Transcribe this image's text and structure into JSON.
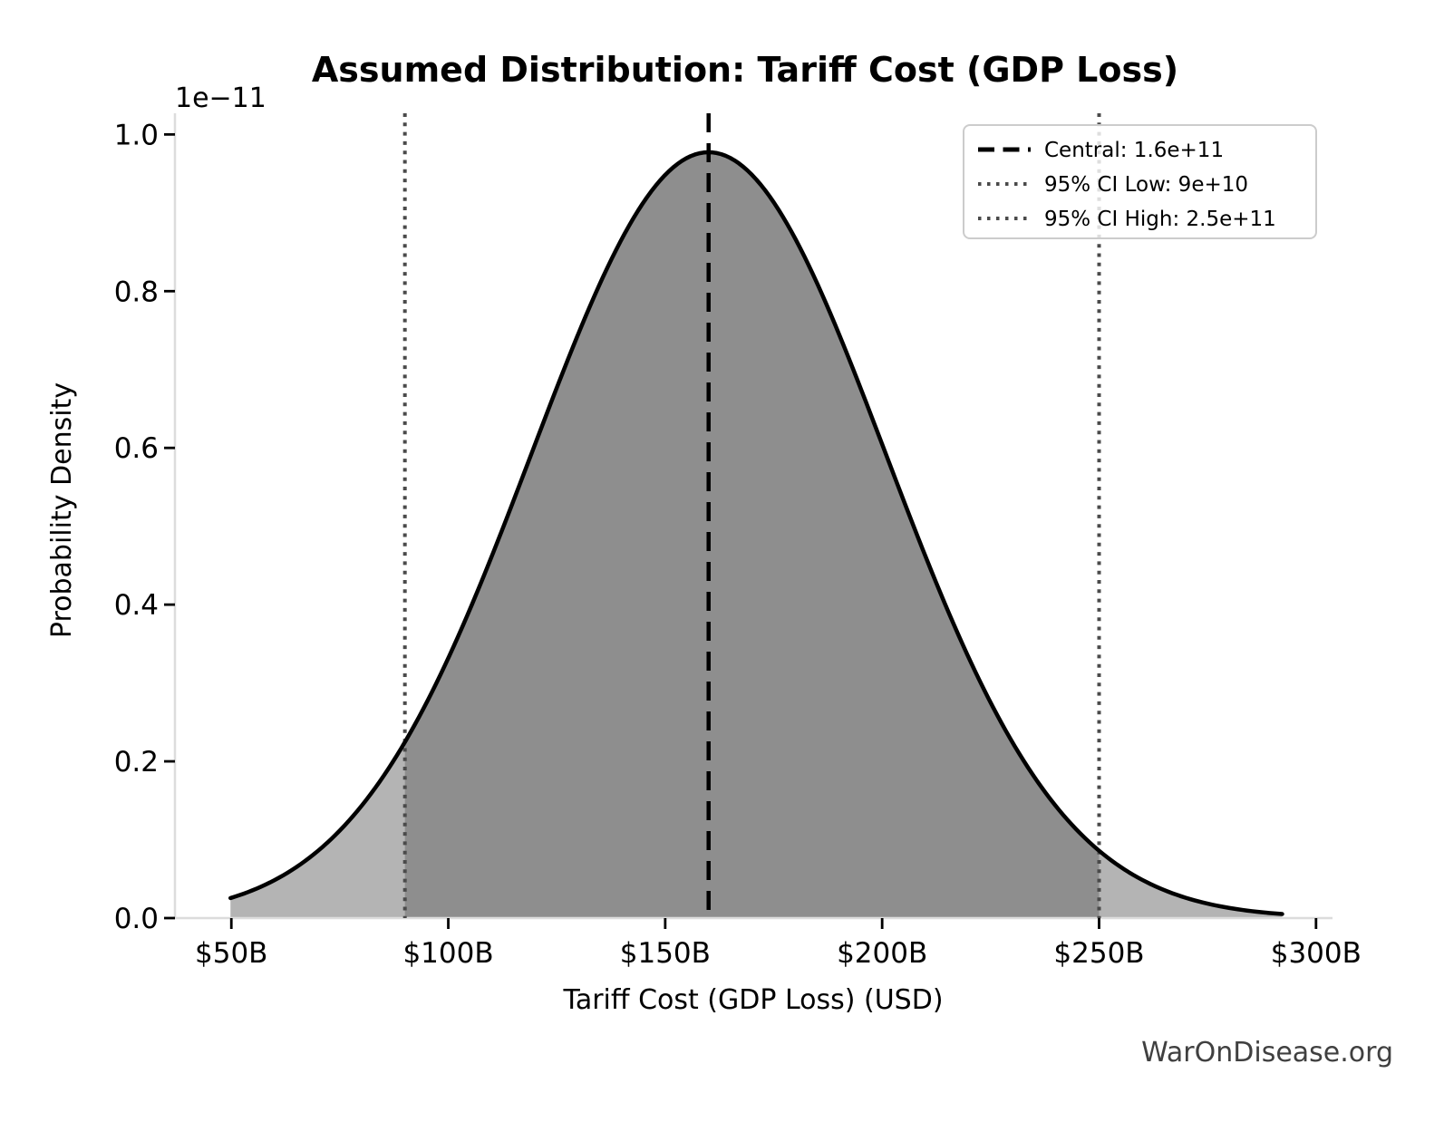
{
  "page": {
    "watermark": "WarOnDisease.org"
  },
  "chart_data": {
    "type": "area",
    "title": "Assumed Distribution: Tariff Cost (GDP Loss)",
    "xlabel": "Tariff Cost (GDP Loss) (USD)",
    "ylabel": "Probability Density",
    "y_scale_offset_label": "1e−11",
    "grid": false,
    "x_ticks": {
      "labels": [
        "$50B",
        "$100B",
        "$150B",
        "$200B",
        "$250B",
        "$300B"
      ],
      "values_billion_usd": [
        50,
        100,
        150,
        200,
        250,
        300
      ]
    },
    "y_ticks": {
      "labels": [
        "0.0",
        "0.2",
        "0.4",
        "0.6",
        "0.8",
        "1.0"
      ],
      "values_1e11": [
        0.0,
        0.2,
        0.4,
        0.6,
        0.8,
        1.0
      ]
    },
    "xlim_billion_usd": [
      37.0,
      303.8
    ],
    "ylim_1e11": [
      0,
      1.027
    ],
    "distribution": {
      "shape": "normal",
      "central_usd": 160000000000.0,
      "ci95_low_usd": 90000000000.0,
      "ci95_high_usd": 250000000000.0,
      "sigma_usd": 40816000000.0,
      "peak_density_per_usd": 9.773e-12,
      "x_min_usd": 49800000000.0,
      "x_max_usd": 292200000000.0
    },
    "curve_points": [
      {
        "x_billion": 50,
        "density_1e11": 0.0259
      },
      {
        "x_billion": 60,
        "density_1e11": 0.0486
      },
      {
        "x_billion": 70,
        "density_1e11": 0.086
      },
      {
        "x_billion": 80,
        "density_1e11": 0.1431
      },
      {
        "x_billion": 90,
        "density_1e11": 0.2246
      },
      {
        "x_billion": 100,
        "density_1e11": 0.3317
      },
      {
        "x_billion": 110,
        "density_1e11": 0.4615
      },
      {
        "x_billion": 120,
        "density_1e11": 0.6047
      },
      {
        "x_billion": 130,
        "density_1e11": 0.746
      },
      {
        "x_billion": 140,
        "density_1e11": 0.8668
      },
      {
        "x_billion": 150,
        "density_1e11": 0.9485
      },
      {
        "x_billion": 160,
        "density_1e11": 0.9773
      },
      {
        "x_billion": 170,
        "density_1e11": 0.9485
      },
      {
        "x_billion": 180,
        "density_1e11": 0.8668
      },
      {
        "x_billion": 190,
        "density_1e11": 0.746
      },
      {
        "x_billion": 200,
        "density_1e11": 0.6047
      },
      {
        "x_billion": 210,
        "density_1e11": 0.4615
      },
      {
        "x_billion": 220,
        "density_1e11": 0.3317
      },
      {
        "x_billion": 230,
        "density_1e11": 0.2246
      },
      {
        "x_billion": 240,
        "density_1e11": 0.1431
      },
      {
        "x_billion": 250,
        "density_1e11": 0.086
      },
      {
        "x_billion": 260,
        "density_1e11": 0.0486
      },
      {
        "x_billion": 270,
        "density_1e11": 0.0259
      },
      {
        "x_billion": 280,
        "density_1e11": 0.013
      },
      {
        "x_billion": 290,
        "density_1e11": 0.0061
      }
    ],
    "legend": {
      "position": "upper right",
      "items": [
        {
          "label": "Central: 1.6e+11",
          "line": "dashed",
          "color": "#000000"
        },
        {
          "label": "95% CI Low: 9e+10",
          "line": "dotted",
          "color": "#4a4a4a"
        },
        {
          "label": "95% CI High: 2.5e+11",
          "line": "dotted",
          "color": "#4a4a4a"
        }
      ]
    },
    "colors": {
      "curve": "#000000",
      "fill_ci": "#8e8e8e",
      "fill_tail": "#b4b4b4",
      "central_line": "#000000",
      "ci_line": "#4a4a4a",
      "spine": "#dcdcdc",
      "tick": "#000000",
      "watermark": "#404040",
      "legend_border": "#cccccc"
    }
  }
}
